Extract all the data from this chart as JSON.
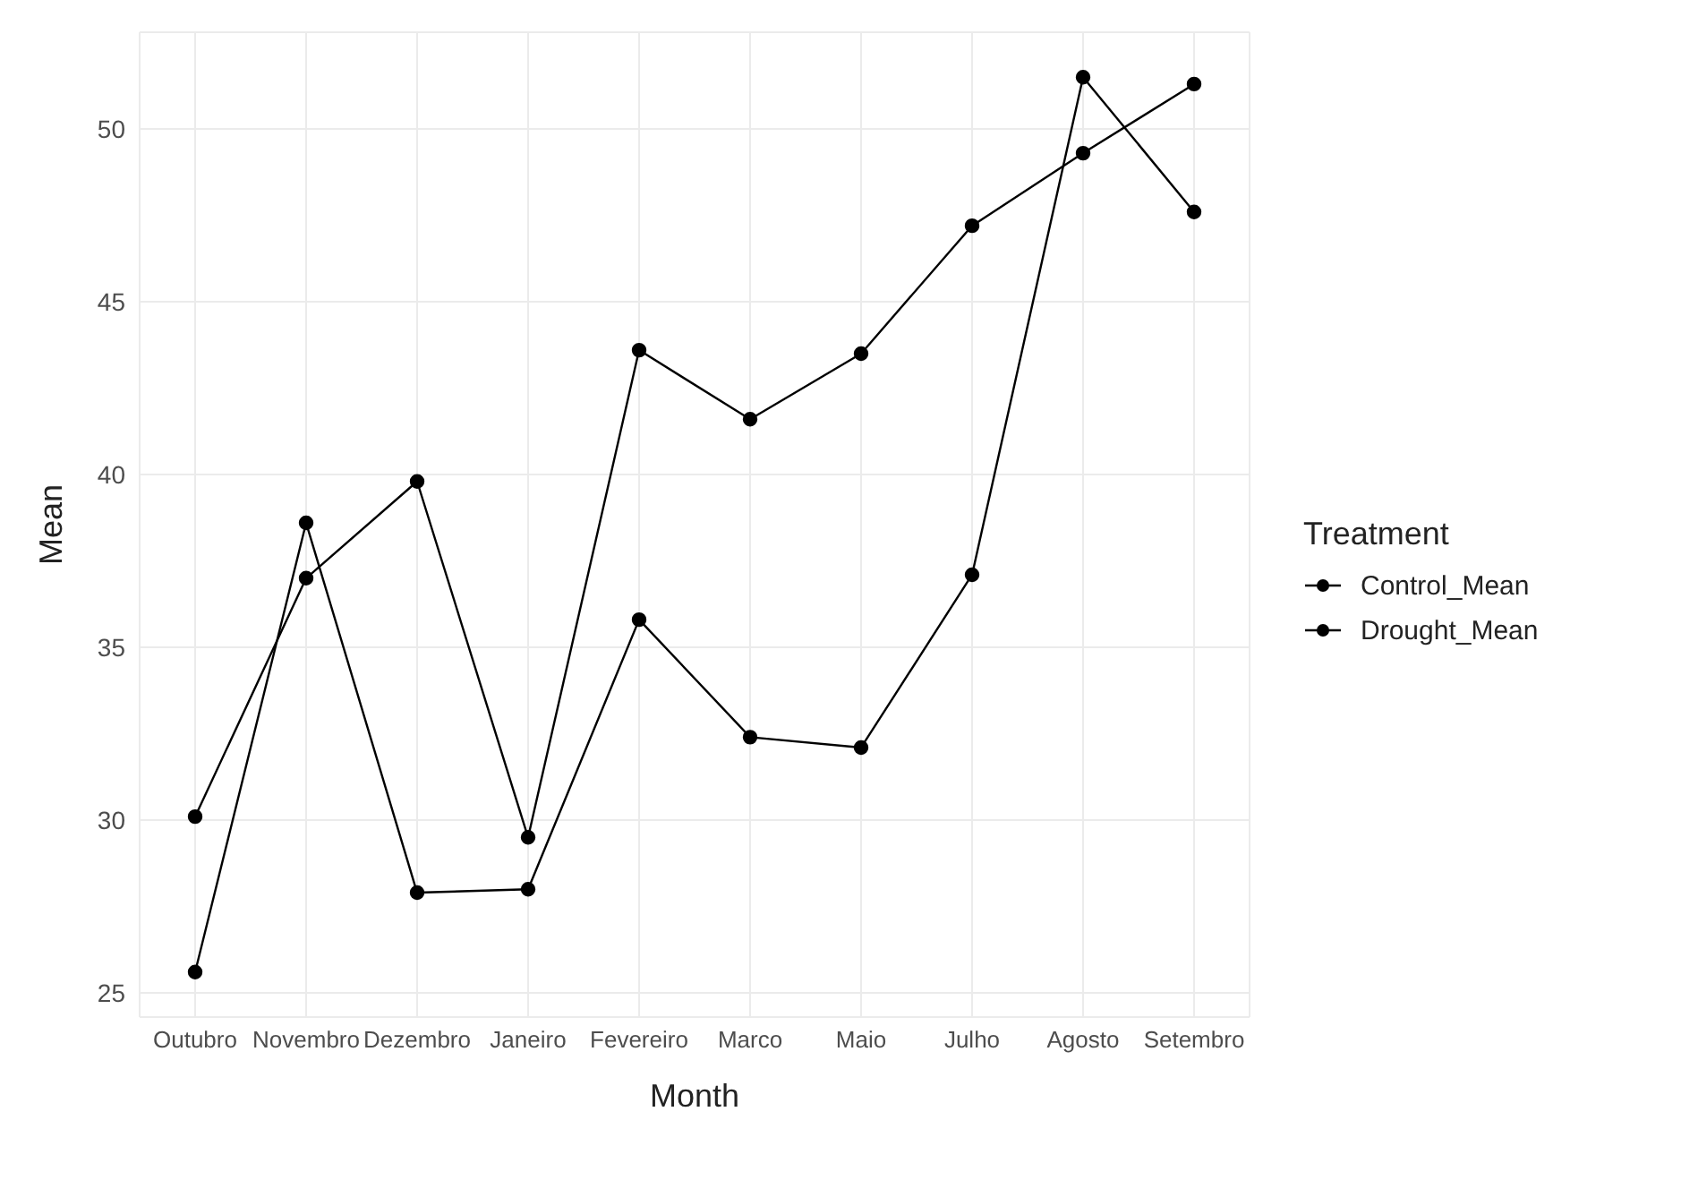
{
  "chart_data": {
    "type": "line",
    "xlabel": "Month",
    "ylabel": "Mean",
    "legend_title": "Treatment",
    "categories": [
      "Outubro",
      "Novembro",
      "Dezembro",
      "Janeiro",
      "Fevereiro",
      "Marco",
      "Maio",
      "Julho",
      "Agosto",
      "Setembro"
    ],
    "series": [
      {
        "name": "Control_Mean",
        "color": "#000000",
        "values": [
          30.1,
          37.0,
          39.8,
          29.5,
          43.6,
          41.6,
          43.5,
          47.2,
          49.3,
          51.3
        ]
      },
      {
        "name": "Drought_Mean",
        "color": "#000000",
        "values": [
          25.6,
          38.6,
          27.9,
          28.0,
          35.8,
          32.4,
          32.1,
          37.1,
          51.5,
          47.6
        ]
      }
    ],
    "ylim": [
      24.3,
      52.8
    ],
    "yticks": [
      25,
      30,
      35,
      40,
      45,
      50
    ],
    "grid": true,
    "legend": "right",
    "marker": "circle",
    "line_style": "solid"
  }
}
